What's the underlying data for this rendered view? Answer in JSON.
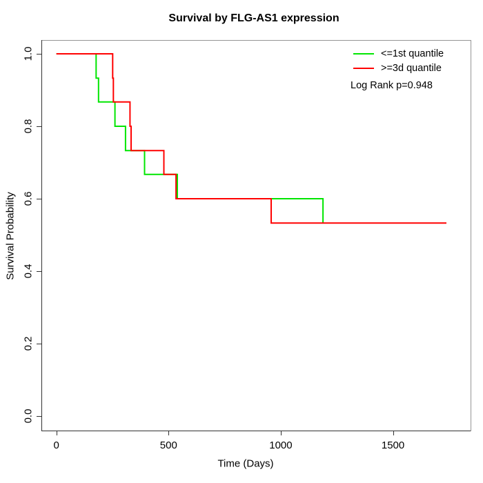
{
  "chart_data": {
    "type": "line",
    "subtype": "kaplan-meier-step-curve",
    "title": "Survival by FLG-AS1 expression",
    "xlabel": "Time (Days)",
    "ylabel": "Survival Probability",
    "xlim": [
      0,
      1750
    ],
    "ylim": [
      0.0,
      1.0
    ],
    "grid": false,
    "x_ticks": [
      0,
      500,
      1000,
      1500
    ],
    "x_tick_labels": [
      "0",
      "500",
      "1000",
      "1500"
    ],
    "y_ticks": [
      0.0,
      0.2,
      0.4,
      0.6,
      0.8,
      1.0
    ],
    "y_tick_labels": [
      "0.0",
      "0.2",
      "0.4",
      "0.6",
      "0.8",
      "1.0"
    ],
    "legend_position": "top-right",
    "annotation": "Log Rank p=0.948",
    "series": [
      {
        "name": "<=1st quantile",
        "color": "#00e600",
        "points": [
          [
            0,
            1.0
          ],
          [
            177,
            1.0
          ],
          [
            177,
            0.933
          ],
          [
            188,
            0.933
          ],
          [
            188,
            0.867
          ],
          [
            261,
            0.867
          ],
          [
            261,
            0.8
          ],
          [
            308,
            0.8
          ],
          [
            308,
            0.733
          ],
          [
            393,
            0.733
          ],
          [
            393,
            0.667
          ],
          [
            539,
            0.667
          ],
          [
            539,
            0.6
          ],
          [
            1188,
            0.6
          ],
          [
            1188,
            0.533
          ]
        ]
      },
      {
        "name": ">=3d quantile",
        "color": "#ff0000",
        "points": [
          [
            0,
            1.0
          ],
          [
            251,
            1.0
          ],
          [
            251,
            0.933
          ],
          [
            254,
            0.933
          ],
          [
            254,
            0.867
          ],
          [
            328,
            0.867
          ],
          [
            328,
            0.8
          ],
          [
            333,
            0.8
          ],
          [
            333,
            0.733
          ],
          [
            479,
            0.733
          ],
          [
            479,
            0.667
          ],
          [
            533,
            0.667
          ],
          [
            533,
            0.6
          ],
          [
            957,
            0.6
          ],
          [
            957,
            0.533
          ],
          [
            1738,
            0.533
          ]
        ]
      }
    ]
  }
}
